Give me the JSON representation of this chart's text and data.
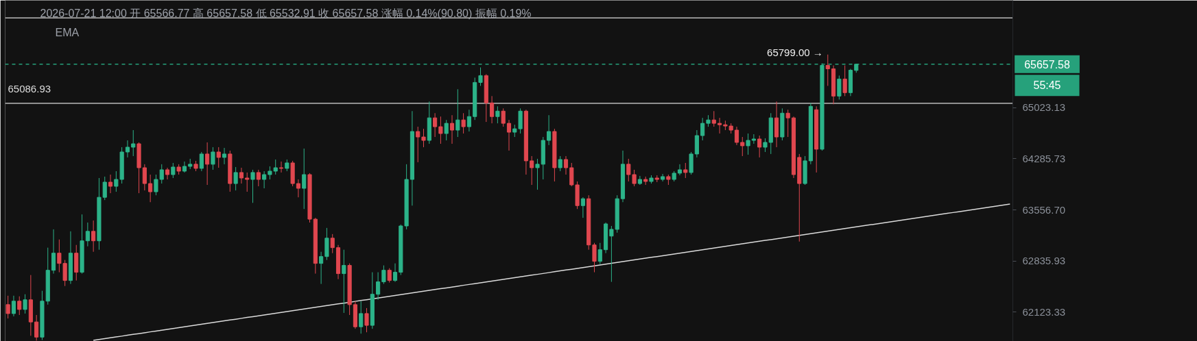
{
  "chart_data": {
    "type": "candlestick",
    "title": "2026-07-21 12:00  开 65566.77  高 65657.58  低 65532.91  收 65657.58  涨幅 0.14%(90.80)  振幅 0.19%",
    "subtitle": "EMA",
    "categories": [
      null,
      null,
      null,
      null,
      null,
      null,
      null,
      null,
      null,
      null,
      null,
      null,
      null,
      null,
      null,
      null,
      null,
      null,
      null,
      null,
      null,
      null,
      null,
      null,
      null,
      null,
      null,
      null,
      null,
      null,
      null,
      null,
      null,
      null,
      null,
      null,
      null,
      null,
      null,
      null,
      null,
      null,
      null,
      null,
      null,
      null,
      null,
      null,
      null,
      null,
      null,
      null,
      null,
      null,
      null,
      null,
      null,
      null,
      null,
      null,
      null,
      null,
      null,
      null,
      null,
      null,
      null,
      null,
      null,
      null,
      null,
      null,
      null,
      null,
      null,
      null,
      null,
      null,
      null,
      null,
      null,
      null,
      null,
      null,
      null,
      null,
      null,
      null,
      null,
      null,
      null,
      null,
      null,
      null,
      null,
      null,
      null,
      null,
      null,
      null,
      null,
      null,
      null,
      null,
      null,
      null,
      null,
      null,
      null,
      null,
      null,
      null,
      null,
      null,
      null,
      null,
      null,
      null,
      null,
      null,
      null,
      null,
      null,
      null,
      null,
      null,
      null,
      null,
      null,
      null,
      null,
      null,
      null,
      null,
      null,
      null,
      null,
      null,
      null,
      null,
      null,
      null,
      null,
      null,
      null,
      null,
      null,
      null,
      null,
      null,
      null,
      null,
      null,
      null,
      null,
      null,
      null,
      null,
      null,
      null,
      null,
      null,
      null,
      null,
      null,
      null,
      null,
      null,
      null,
      null,
      null,
      null,
      null,
      null,
      null,
      null,
      null
    ],
    "ohlc": [
      [
        62228,
        62352,
        62036,
        62104
      ],
      [
        62104,
        62352,
        62065,
        62276
      ],
      [
        62276,
        62343,
        62084,
        62161
      ],
      [
        62161,
        62372,
        62104,
        62295
      ],
      [
        62295,
        62640,
        61797,
        61988
      ],
      [
        61988,
        62084,
        61730,
        61778
      ],
      [
        61778,
        62420,
        61739,
        62276
      ],
      [
        62276,
        63024,
        62228,
        62707
      ],
      [
        62707,
        63282,
        62660,
        62947
      ],
      [
        62947,
        63139,
        62679,
        62803
      ],
      [
        62803,
        62851,
        62487,
        62564
      ],
      [
        62564,
        63254,
        62516,
        62947
      ],
      [
        62947,
        63062,
        62564,
        62679
      ],
      [
        62679,
        63493,
        62660,
        63120
      ],
      [
        63120,
        63378,
        63043,
        63254
      ],
      [
        63254,
        63407,
        62966,
        63120
      ],
      [
        63120,
        64011,
        62995,
        63736
      ],
      [
        63736,
        64031,
        63697,
        63952
      ],
      [
        63952,
        64060,
        63795,
        63893
      ],
      [
        63893,
        64109,
        63815,
        63991
      ],
      [
        63991,
        64453,
        63932,
        64384
      ],
      [
        64384,
        64551,
        64306,
        64453
      ],
      [
        64453,
        64699,
        64325,
        64502
      ],
      [
        64502,
        64522,
        63795,
        64158
      ],
      [
        64158,
        64208,
        63834,
        63932
      ],
      [
        63932,
        64060,
        63667,
        63815
      ],
      [
        63815,
        64060,
        63765,
        63991
      ],
      [
        63991,
        64208,
        63932,
        64129
      ],
      [
        64129,
        64158,
        63991,
        64060
      ],
      [
        64060,
        64227,
        64011,
        64168
      ],
      [
        64168,
        64208,
        64060,
        64109
      ],
      [
        64109,
        64247,
        64090,
        64178
      ],
      [
        64178,
        64286,
        64139,
        64208
      ],
      [
        64208,
        64257,
        64109,
        64149
      ],
      [
        64149,
        64384,
        64109,
        64355
      ],
      [
        64355,
        64522,
        63913,
        64208
      ],
      [
        64208,
        64453,
        64129,
        64384
      ],
      [
        64384,
        64453,
        64158,
        64306
      ],
      [
        64306,
        64443,
        64208,
        64355
      ],
      [
        64355,
        64404,
        63815,
        63932
      ],
      [
        63932,
        64168,
        63834,
        64090
      ],
      [
        64090,
        64158,
        63932,
        64011
      ],
      [
        64011,
        64090,
        63815,
        63991
      ],
      [
        63991,
        64129,
        63657,
        64090
      ],
      [
        64090,
        64129,
        63893,
        63991
      ],
      [
        63991,
        64109,
        63864,
        64060
      ],
      [
        64060,
        64178,
        63991,
        64109
      ],
      [
        64109,
        64276,
        64060,
        64158
      ],
      [
        64158,
        64247,
        64090,
        64149
      ],
      [
        64149,
        64276,
        64109,
        64227
      ],
      [
        64227,
        64257,
        63893,
        63932
      ],
      [
        63932,
        63991,
        63736,
        63864
      ],
      [
        63864,
        64433,
        63570,
        64060
      ],
      [
        64060,
        64080,
        63378,
        63426
      ],
      [
        63426,
        63445,
        62660,
        62803
      ],
      [
        62803,
        62966,
        62516,
        62899
      ],
      [
        62899,
        63302,
        62851,
        63158
      ],
      [
        63158,
        63215,
        62947,
        63024
      ],
      [
        63024,
        63062,
        62583,
        62660
      ],
      [
        62660,
        62995,
        62113,
        62775
      ],
      [
        62775,
        62803,
        62084,
        62228
      ],
      [
        62228,
        62276,
        61893,
        61921
      ],
      [
        61921,
        62276,
        61826,
        62104
      ],
      [
        62104,
        62180,
        61845,
        61941
      ],
      [
        61941,
        62679,
        61893,
        62372
      ],
      [
        62372,
        62679,
        62295,
        62545
      ],
      [
        62545,
        62775,
        62516,
        62707
      ],
      [
        62707,
        62736,
        62535,
        62564
      ],
      [
        62564,
        62803,
        62545,
        62679
      ],
      [
        62679,
        63350,
        62640,
        63330
      ],
      [
        63330,
        64208,
        63282,
        63991
      ],
      [
        63991,
        64974,
        63618,
        64679
      ],
      [
        64679,
        64748,
        64237,
        64600
      ],
      [
        64600,
        64718,
        64453,
        64551
      ],
      [
        64551,
        65113,
        64502,
        64876
      ],
      [
        64876,
        64944,
        64600,
        64748
      ],
      [
        64748,
        64895,
        64502,
        64650
      ],
      [
        64650,
        64846,
        64551,
        64797
      ],
      [
        64797,
        64915,
        64502,
        64699
      ],
      [
        64699,
        65292,
        64600,
        64846
      ],
      [
        64846,
        64944,
        64650,
        64748
      ],
      [
        64748,
        64994,
        64679,
        64895
      ],
      [
        64895,
        65461,
        64846,
        65391
      ],
      [
        65391,
        65610,
        65341,
        65491
      ],
      [
        65491,
        65511,
        64817,
        65093
      ],
      [
        65093,
        65192,
        64797,
        64895
      ],
      [
        64895,
        65043,
        64797,
        64974
      ],
      [
        64974,
        65013,
        64748,
        64797
      ],
      [
        64797,
        64846,
        64404,
        64669
      ],
      [
        64669,
        64777,
        64600,
        64718
      ],
      [
        64718,
        65013,
        64650,
        64974
      ],
      [
        64974,
        64994,
        64060,
        64257
      ],
      [
        64257,
        64325,
        63913,
        64158
      ],
      [
        64158,
        64286,
        63844,
        64208
      ],
      [
        64208,
        64600,
        63991,
        64551
      ],
      [
        64551,
        64915,
        64483,
        64679
      ],
      [
        64679,
        64718,
        63962,
        64158
      ],
      [
        64158,
        64325,
        64109,
        64276
      ],
      [
        64276,
        64325,
        64060,
        64158
      ],
      [
        64158,
        64227,
        63893,
        63913
      ],
      [
        63913,
        63962,
        63570,
        63618
      ],
      [
        63618,
        63736,
        63445,
        63716
      ],
      [
        63716,
        63765,
        62995,
        63062
      ],
      [
        63062,
        63091,
        62679,
        62832
      ],
      [
        62832,
        63091,
        62794,
        62995
      ],
      [
        62995,
        63378,
        62947,
        63359
      ],
      [
        63187,
        63330,
        62545,
        63282
      ],
      [
        63282,
        63765,
        63235,
        63716
      ],
      [
        63716,
        64404,
        63667,
        64208
      ],
      [
        64208,
        64286,
        63962,
        64060
      ],
      [
        64060,
        64129,
        63893,
        63932
      ],
      [
        63932,
        64041,
        63913,
        63991
      ],
      [
        63991,
        64031,
        63913,
        63962
      ],
      [
        63962,
        64050,
        63932,
        64011
      ],
      [
        64011,
        64050,
        63952,
        63991
      ],
      [
        63991,
        64070,
        63962,
        64031
      ],
      [
        64031,
        64060,
        63913,
        63991
      ],
      [
        63991,
        64109,
        63962,
        64080
      ],
      [
        64080,
        64208,
        64050,
        64129
      ],
      [
        64129,
        64227,
        64011,
        64090
      ],
      [
        64090,
        64384,
        64060,
        64355
      ],
      [
        64355,
        64699,
        64306,
        64620
      ],
      [
        64620,
        64876,
        64551,
        64797
      ],
      [
        64797,
        64915,
        64748,
        64846
      ],
      [
        64846,
        64974,
        64748,
        64797
      ],
      [
        64797,
        64876,
        64650,
        64777
      ],
      [
        64777,
        64836,
        64699,
        64758
      ],
      [
        64758,
        64797,
        64650,
        64699
      ],
      [
        64699,
        64748,
        64483,
        64522
      ],
      [
        64522,
        64600,
        64325,
        64473
      ],
      [
        64473,
        64650,
        64345,
        64551
      ],
      [
        64551,
        64640,
        64502,
        64571
      ],
      [
        64571,
        64620,
        64306,
        64453
      ],
      [
        64453,
        64581,
        64384,
        64522
      ],
      [
        64522,
        64944,
        64355,
        64876
      ],
      [
        64876,
        65113,
        64453,
        64600
      ],
      [
        64600,
        65013,
        64551,
        64944
      ],
      [
        64944,
        64994,
        64600,
        64876
      ],
      [
        64876,
        64895,
        64011,
        64060
      ],
      [
        64306,
        64355,
        63110,
        63932
      ],
      [
        63932,
        64325,
        63913,
        64257
      ],
      [
        64257,
        65093,
        64208,
        65043
      ],
      [
        64994,
        65043,
        64090,
        64424
      ],
      [
        64424,
        65670,
        64404,
        65640
      ],
      [
        65640,
        65799,
        65341,
        65590
      ],
      [
        65590,
        65640,
        65073,
        65192
      ],
      [
        65192,
        65491,
        65142,
        65441
      ],
      [
        65441,
        65640,
        65192,
        65242
      ],
      [
        65242,
        65590,
        65192,
        65570
      ],
      [
        65566.77,
        65657.58,
        65532.91,
        65657.58
      ],
      null,
      null,
      null,
      null,
      null,
      null,
      null,
      null,
      null,
      null,
      null,
      null,
      null,
      null,
      null,
      null,
      null,
      null,
      null,
      null,
      null,
      null,
      null,
      null,
      null,
      null,
      null
    ],
    "colors": [
      "#e0474f",
      "#2cb389",
      "#e0474f",
      "#2cb389",
      "#e0474f",
      "#e0474f",
      "#2cb389",
      "#2cb389",
      "#2cb389",
      "#e0474f",
      "#e0474f",
      "#2cb389",
      "#e0474f",
      "#2cb389",
      "#2cb389",
      "#e0474f",
      "#2cb389",
      "#2cb389",
      "#e0474f",
      "#2cb389",
      "#2cb389",
      "#2cb389",
      "#2cb389",
      "#e0474f",
      "#e0474f",
      "#e0474f",
      "#2cb389",
      "#2cb389",
      "#e0474f",
      "#2cb389",
      "#e0474f",
      "#2cb389",
      "#2cb389",
      "#e0474f",
      "#2cb389",
      "#e0474f",
      "#2cb389",
      "#e0474f",
      "#2cb389",
      "#e0474f",
      "#2cb389",
      "#e0474f",
      "#e0474f",
      "#2cb389",
      "#e0474f",
      "#2cb389",
      "#2cb389",
      "#2cb389",
      "#e0474f",
      "#2cb389",
      "#e0474f",
      "#e0474f",
      "#2cb389",
      "#e0474f",
      "#e0474f",
      "#2cb389",
      "#2cb389",
      "#e0474f",
      "#e0474f",
      "#2cb389",
      "#e0474f",
      "#e0474f",
      "#2cb389",
      "#e0474f",
      "#2cb389",
      "#2cb389",
      "#2cb389",
      "#e0474f",
      "#2cb389",
      "#2cb389",
      "#2cb389",
      "#2cb389",
      "#e0474f",
      "#e0474f",
      "#2cb389",
      "#e0474f",
      "#e0474f",
      "#2cb389",
      "#e0474f",
      "#2cb389",
      "#e0474f",
      "#2cb389",
      "#2cb389",
      "#2cb389",
      "#e0474f",
      "#e0474f",
      "#2cb389",
      "#e0474f",
      "#e0474f",
      "#2cb389",
      "#2cb389",
      "#e0474f",
      "#e0474f",
      "#2cb389",
      "#2cb389",
      "#2cb389",
      "#e0474f",
      "#2cb389",
      "#e0474f",
      "#e0474f",
      "#e0474f",
      "#2cb389",
      "#e0474f",
      "#e0474f",
      "#2cb389",
      "#2cb389",
      "#2cb389",
      "#2cb389",
      "#2cb389",
      "#e0474f",
      "#e0474f",
      "#2cb389",
      "#e0474f",
      "#2cb389",
      "#e0474f",
      "#2cb389",
      "#e0474f",
      "#2cb389",
      "#2cb389",
      "#e0474f",
      "#2cb389",
      "#2cb389",
      "#2cb389",
      "#2cb389",
      "#e0474f",
      "#e0474f",
      "#e0474f",
      "#e0474f",
      "#e0474f",
      "#e0474f",
      "#2cb389",
      "#2cb389",
      "#e0474f",
      "#2cb389",
      "#2cb389",
      "#e0474f",
      "#2cb389",
      "#e0474f",
      "#e0474f",
      "#e0474f",
      "#2cb389",
      "#2cb389",
      "#e0474f",
      "#2cb389",
      "#e0474f",
      "#e0474f",
      "#2cb389",
      "#e0474f",
      "#2cb389",
      "#2cb389",
      null,
      null,
      null,
      null,
      null,
      null,
      null,
      null,
      null,
      null,
      null,
      null,
      null,
      null,
      null,
      null,
      null,
      null,
      null,
      null,
      null,
      null,
      null,
      null,
      null,
      null,
      null
    ],
    "series": [
      {
        "type": "line",
        "color": "#dcdcdc",
        "values": [
          null,
          null,
          null,
          null,
          null,
          null,
          null,
          null,
          null,
          null,
          null,
          null,
          null,
          null,
          null,
          61734,
          61746,
          61757,
          61769,
          61781,
          61792,
          61804,
          61816,
          61827,
          61839,
          61851,
          61862,
          61874,
          61886,
          61898,
          61909,
          61921,
          61933,
          61944,
          61956,
          61968,
          61979,
          61991,
          62003,
          62015,
          62026,
          62038,
          62050,
          62061,
          62073,
          62085,
          62097,
          62108,
          62120,
          62132,
          62143,
          62155,
          62167,
          62179,
          62191,
          62202,
          62214,
          62226,
          62238,
          62249,
          62261,
          62273,
          62285,
          62296,
          62308,
          62320,
          62332,
          62343,
          62355,
          62367,
          62379,
          62391,
          62402,
          62414,
          62426,
          62438,
          62450,
          62461,
          62473,
          62485,
          62497,
          62509,
          62520,
          62532,
          62544,
          62556,
          62568,
          62579,
          62591,
          62603,
          62615,
          62627,
          62639,
          62650,
          62662,
          62674,
          62686,
          62698,
          62710,
          62721,
          62733,
          62745,
          62757,
          62769,
          62781,
          62793,
          62804,
          62816,
          62828,
          62840,
          62852,
          62864,
          62876,
          62888,
          62899,
          62911,
          62923,
          62935,
          62947,
          62959,
          62971,
          62983,
          62995,
          63006,
          63018,
          63030,
          63042,
          63054,
          63066,
          63078,
          63090,
          63102,
          63114,
          63126,
          63137,
          63149,
          63161,
          63173,
          63185,
          63197,
          63209,
          63221,
          63233,
          63245,
          63257,
          63269,
          63281,
          63293,
          63305,
          63317,
          63329,
          63341,
          63352,
          63364,
          63376,
          63388,
          63400,
          63412,
          63424,
          63436,
          63448,
          63460,
          63472,
          63484,
          63496,
          63508,
          63520,
          63532,
          63544,
          63556,
          63568,
          63580,
          63592,
          63604,
          63616,
          63628,
          63640
        ]
      }
    ],
    "log": true,
    "ylim": [
      61720,
      66600
    ],
    "yticks": [
      62123.33,
      62835.93,
      {
        "value": 63556.7,
        "label": "63556.70"
      },
      64285.73,
      65023.13
    ],
    "tick_labels": "y",
    "ref_lines": [
      {
        "axis": "y",
        "value": 66340,
        "color": "#dcdcdc"
      },
      {
        "axis": "y",
        "value": 65086.93,
        "label": "65086.93",
        "color": "#dcdcdc"
      },
      {
        "axis": "y",
        "value": 65657.58,
        "label": "65657.58",
        "color": "#26a17b",
        "line_style": "dashed"
      }
    ],
    "annotations": [
      "55:45",
      "65799.00 →"
    ]
  }
}
